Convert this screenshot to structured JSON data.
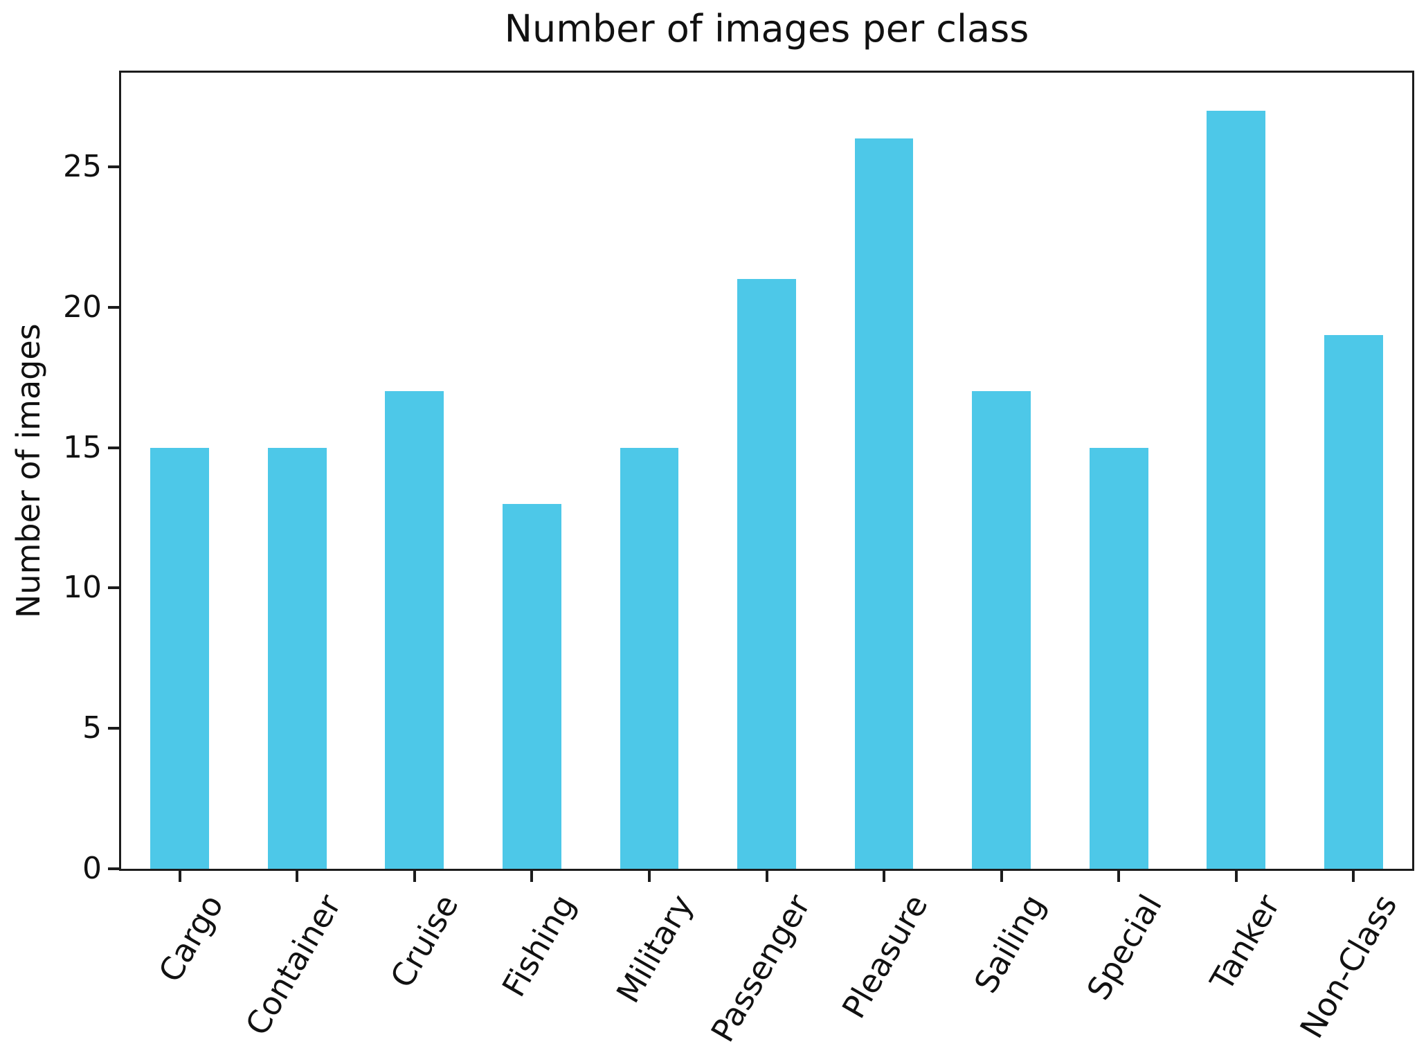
{
  "chart_data": {
    "type": "bar",
    "title": "Number of images per class",
    "xlabel": "",
    "ylabel": "Number of images",
    "categories": [
      "Cargo",
      "Container",
      "Cruise",
      "Fishing",
      "Military",
      "Passenger",
      "Pleasure",
      "Sailing",
      "Special",
      "Tanker",
      "Non-Class"
    ],
    "values": [
      15,
      15,
      17,
      13,
      15,
      21,
      26,
      17,
      15,
      27,
      19
    ],
    "yticks": [
      0,
      5,
      10,
      15,
      20,
      25
    ],
    "ylim": [
      0,
      28.35
    ],
    "bar_color": "#4dc8e8",
    "axis_color": "#1c1c1c",
    "text_color": "#111111",
    "bar_width_fraction": 0.5,
    "xtick_rotation_deg": 60,
    "grid": false,
    "legend": "none"
  }
}
